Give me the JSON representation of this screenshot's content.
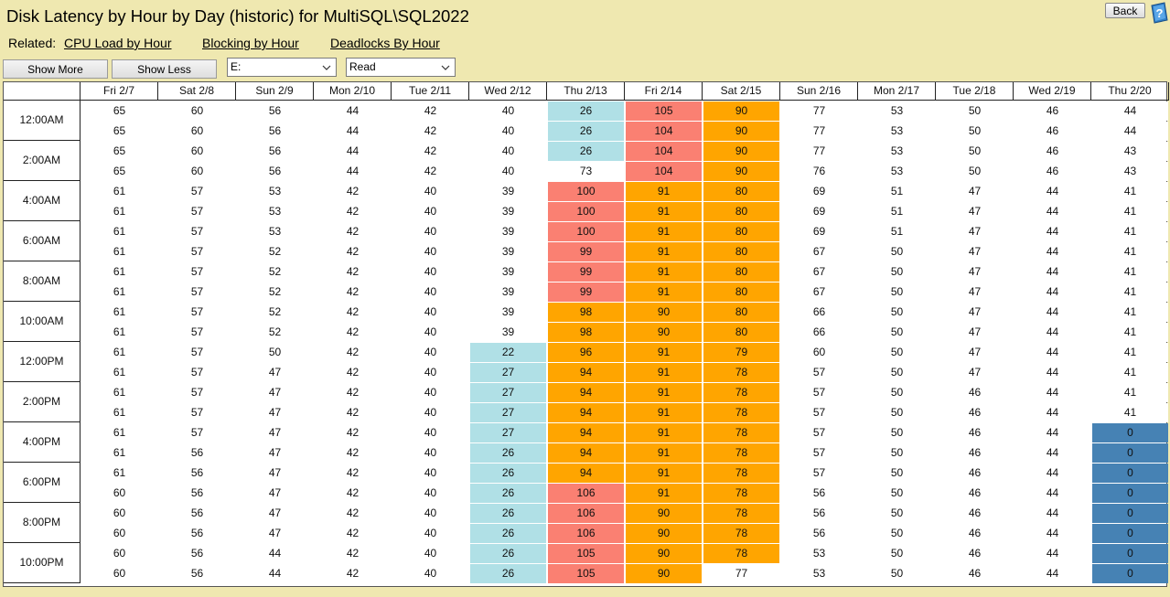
{
  "title": "Disk Latency by Hour by Day (historic) for MultiSQL\\SQL2022",
  "back_label": "Back",
  "related_label": "Related:",
  "links": [
    "CPU Load by Hour",
    "Blocking by Hour",
    "Deadlocks By Hour"
  ],
  "buttons": {
    "show_more": "Show More",
    "show_less": "Show Less"
  },
  "drive_select": {
    "value": "E:"
  },
  "metric_select": {
    "value": "Read"
  },
  "icons": {
    "help": "help-question-icon",
    "dropdown": "chevron-down-icon"
  },
  "colors": {
    "lightblue": "#b0e0e6",
    "salmon": "#fa8072",
    "orange": "#ffa500",
    "steelblue": "#4682b4",
    "white": "#ffffff"
  },
  "days": [
    "Fri 2/7",
    "Sat 2/8",
    "Sun 2/9",
    "Mon 2/10",
    "Tue 2/11",
    "Wed 2/12",
    "Thu 2/13",
    "Fri 2/14",
    "Sat 2/15",
    "Sun 2/16",
    "Mon 2/17",
    "Tue 2/18",
    "Wed 2/19",
    "Thu 2/20"
  ],
  "hours": [
    "12:00AM",
    "2:00AM",
    "4:00AM",
    "6:00AM",
    "8:00AM",
    "10:00AM",
    "12:00PM",
    "2:00PM",
    "4:00PM",
    "6:00PM",
    "8:00PM",
    "10:00PM"
  ],
  "rows": [
    [
      [
        "65",
        ""
      ],
      [
        "60",
        ""
      ],
      [
        "56",
        ""
      ],
      [
        "44",
        ""
      ],
      [
        "42",
        ""
      ],
      [
        "40",
        ""
      ],
      [
        "26",
        "b"
      ],
      [
        "105",
        "s"
      ],
      [
        "90",
        "o"
      ],
      [
        "77",
        ""
      ],
      [
        "53",
        ""
      ],
      [
        "50",
        ""
      ],
      [
        "46",
        ""
      ],
      [
        "44",
        ""
      ]
    ],
    [
      [
        "65",
        ""
      ],
      [
        "60",
        ""
      ],
      [
        "56",
        ""
      ],
      [
        "44",
        ""
      ],
      [
        "42",
        ""
      ],
      [
        "40",
        ""
      ],
      [
        "26",
        "b"
      ],
      [
        "104",
        "s"
      ],
      [
        "90",
        "o"
      ],
      [
        "77",
        ""
      ],
      [
        "53",
        ""
      ],
      [
        "50",
        ""
      ],
      [
        "46",
        ""
      ],
      [
        "44",
        ""
      ]
    ],
    [
      [
        "65",
        ""
      ],
      [
        "60",
        ""
      ],
      [
        "56",
        ""
      ],
      [
        "44",
        ""
      ],
      [
        "42",
        ""
      ],
      [
        "40",
        ""
      ],
      [
        "26",
        "b"
      ],
      [
        "104",
        "s"
      ],
      [
        "90",
        "o"
      ],
      [
        "77",
        ""
      ],
      [
        "53",
        ""
      ],
      [
        "50",
        ""
      ],
      [
        "46",
        ""
      ],
      [
        "43",
        ""
      ]
    ],
    [
      [
        "65",
        ""
      ],
      [
        "60",
        ""
      ],
      [
        "56",
        ""
      ],
      [
        "44",
        ""
      ],
      [
        "42",
        ""
      ],
      [
        "40",
        ""
      ],
      [
        "73",
        ""
      ],
      [
        "104",
        "s"
      ],
      [
        "90",
        "o"
      ],
      [
        "76",
        ""
      ],
      [
        "53",
        ""
      ],
      [
        "50",
        ""
      ],
      [
        "46",
        ""
      ],
      [
        "43",
        ""
      ]
    ],
    [
      [
        "61",
        ""
      ],
      [
        "57",
        ""
      ],
      [
        "53",
        ""
      ],
      [
        "42",
        ""
      ],
      [
        "40",
        ""
      ],
      [
        "39",
        ""
      ],
      [
        "100",
        "s"
      ],
      [
        "91",
        "o"
      ],
      [
        "80",
        "o"
      ],
      [
        "69",
        ""
      ],
      [
        "51",
        ""
      ],
      [
        "47",
        ""
      ],
      [
        "44",
        ""
      ],
      [
        "41",
        ""
      ]
    ],
    [
      [
        "61",
        ""
      ],
      [
        "57",
        ""
      ],
      [
        "53",
        ""
      ],
      [
        "42",
        ""
      ],
      [
        "40",
        ""
      ],
      [
        "39",
        ""
      ],
      [
        "100",
        "s"
      ],
      [
        "91",
        "o"
      ],
      [
        "80",
        "o"
      ],
      [
        "69",
        ""
      ],
      [
        "51",
        ""
      ],
      [
        "47",
        ""
      ],
      [
        "44",
        ""
      ],
      [
        "41",
        ""
      ]
    ],
    [
      [
        "61",
        ""
      ],
      [
        "57",
        ""
      ],
      [
        "53",
        ""
      ],
      [
        "42",
        ""
      ],
      [
        "40",
        ""
      ],
      [
        "39",
        ""
      ],
      [
        "100",
        "s"
      ],
      [
        "91",
        "o"
      ],
      [
        "80",
        "o"
      ],
      [
        "69",
        ""
      ],
      [
        "51",
        ""
      ],
      [
        "47",
        ""
      ],
      [
        "44",
        ""
      ],
      [
        "41",
        ""
      ]
    ],
    [
      [
        "61",
        ""
      ],
      [
        "57",
        ""
      ],
      [
        "52",
        ""
      ],
      [
        "42",
        ""
      ],
      [
        "40",
        ""
      ],
      [
        "39",
        ""
      ],
      [
        "99",
        "s"
      ],
      [
        "91",
        "o"
      ],
      [
        "80",
        "o"
      ],
      [
        "67",
        ""
      ],
      [
        "50",
        ""
      ],
      [
        "47",
        ""
      ],
      [
        "44",
        ""
      ],
      [
        "41",
        ""
      ]
    ],
    [
      [
        "61",
        ""
      ],
      [
        "57",
        ""
      ],
      [
        "52",
        ""
      ],
      [
        "42",
        ""
      ],
      [
        "40",
        ""
      ],
      [
        "39",
        ""
      ],
      [
        "99",
        "s"
      ],
      [
        "91",
        "o"
      ],
      [
        "80",
        "o"
      ],
      [
        "67",
        ""
      ],
      [
        "50",
        ""
      ],
      [
        "47",
        ""
      ],
      [
        "44",
        ""
      ],
      [
        "41",
        ""
      ]
    ],
    [
      [
        "61",
        ""
      ],
      [
        "57",
        ""
      ],
      [
        "52",
        ""
      ],
      [
        "42",
        ""
      ],
      [
        "40",
        ""
      ],
      [
        "39",
        ""
      ],
      [
        "99",
        "s"
      ],
      [
        "91",
        "o"
      ],
      [
        "80",
        "o"
      ],
      [
        "67",
        ""
      ],
      [
        "50",
        ""
      ],
      [
        "47",
        ""
      ],
      [
        "44",
        ""
      ],
      [
        "41",
        ""
      ]
    ],
    [
      [
        "61",
        ""
      ],
      [
        "57",
        ""
      ],
      [
        "52",
        ""
      ],
      [
        "42",
        ""
      ],
      [
        "40",
        ""
      ],
      [
        "39",
        ""
      ],
      [
        "98",
        "o"
      ],
      [
        "90",
        "o"
      ],
      [
        "80",
        "o"
      ],
      [
        "66",
        ""
      ],
      [
        "50",
        ""
      ],
      [
        "47",
        ""
      ],
      [
        "44",
        ""
      ],
      [
        "41",
        ""
      ]
    ],
    [
      [
        "61",
        ""
      ],
      [
        "57",
        ""
      ],
      [
        "52",
        ""
      ],
      [
        "42",
        ""
      ],
      [
        "40",
        ""
      ],
      [
        "39",
        ""
      ],
      [
        "98",
        "o"
      ],
      [
        "90",
        "o"
      ],
      [
        "80",
        "o"
      ],
      [
        "66",
        ""
      ],
      [
        "50",
        ""
      ],
      [
        "47",
        ""
      ],
      [
        "44",
        ""
      ],
      [
        "41",
        ""
      ]
    ],
    [
      [
        "61",
        ""
      ],
      [
        "57",
        ""
      ],
      [
        "50",
        ""
      ],
      [
        "42",
        ""
      ],
      [
        "40",
        ""
      ],
      [
        "22",
        "b"
      ],
      [
        "96",
        "o"
      ],
      [
        "91",
        "o"
      ],
      [
        "79",
        "o"
      ],
      [
        "60",
        ""
      ],
      [
        "50",
        ""
      ],
      [
        "47",
        ""
      ],
      [
        "44",
        ""
      ],
      [
        "41",
        ""
      ]
    ],
    [
      [
        "61",
        ""
      ],
      [
        "57",
        ""
      ],
      [
        "47",
        ""
      ],
      [
        "42",
        ""
      ],
      [
        "40",
        ""
      ],
      [
        "27",
        "b"
      ],
      [
        "94",
        "o"
      ],
      [
        "91",
        "o"
      ],
      [
        "78",
        "o"
      ],
      [
        "57",
        ""
      ],
      [
        "50",
        ""
      ],
      [
        "47",
        ""
      ],
      [
        "44",
        ""
      ],
      [
        "41",
        ""
      ]
    ],
    [
      [
        "61",
        ""
      ],
      [
        "57",
        ""
      ],
      [
        "47",
        ""
      ],
      [
        "42",
        ""
      ],
      [
        "40",
        ""
      ],
      [
        "27",
        "b"
      ],
      [
        "94",
        "o"
      ],
      [
        "91",
        "o"
      ],
      [
        "78",
        "o"
      ],
      [
        "57",
        ""
      ],
      [
        "50",
        ""
      ],
      [
        "46",
        ""
      ],
      [
        "44",
        ""
      ],
      [
        "41",
        ""
      ]
    ],
    [
      [
        "61",
        ""
      ],
      [
        "57",
        ""
      ],
      [
        "47",
        ""
      ],
      [
        "42",
        ""
      ],
      [
        "40",
        ""
      ],
      [
        "27",
        "b"
      ],
      [
        "94",
        "o"
      ],
      [
        "91",
        "o"
      ],
      [
        "78",
        "o"
      ],
      [
        "57",
        ""
      ],
      [
        "50",
        ""
      ],
      [
        "46",
        ""
      ],
      [
        "44",
        ""
      ],
      [
        "41",
        ""
      ]
    ],
    [
      [
        "61",
        ""
      ],
      [
        "57",
        ""
      ],
      [
        "47",
        ""
      ],
      [
        "42",
        ""
      ],
      [
        "40",
        ""
      ],
      [
        "27",
        "b"
      ],
      [
        "94",
        "o"
      ],
      [
        "91",
        "o"
      ],
      [
        "78",
        "o"
      ],
      [
        "57",
        ""
      ],
      [
        "50",
        ""
      ],
      [
        "46",
        ""
      ],
      [
        "44",
        ""
      ],
      [
        "0",
        "d"
      ]
    ],
    [
      [
        "61",
        ""
      ],
      [
        "56",
        ""
      ],
      [
        "47",
        ""
      ],
      [
        "42",
        ""
      ],
      [
        "40",
        ""
      ],
      [
        "26",
        "b"
      ],
      [
        "94",
        "o"
      ],
      [
        "91",
        "o"
      ],
      [
        "78",
        "o"
      ],
      [
        "57",
        ""
      ],
      [
        "50",
        ""
      ],
      [
        "46",
        ""
      ],
      [
        "44",
        ""
      ],
      [
        "0",
        "d"
      ]
    ],
    [
      [
        "61",
        ""
      ],
      [
        "56",
        ""
      ],
      [
        "47",
        ""
      ],
      [
        "42",
        ""
      ],
      [
        "40",
        ""
      ],
      [
        "26",
        "b"
      ],
      [
        "94",
        "o"
      ],
      [
        "91",
        "o"
      ],
      [
        "78",
        "o"
      ],
      [
        "57",
        ""
      ],
      [
        "50",
        ""
      ],
      [
        "46",
        ""
      ],
      [
        "44",
        ""
      ],
      [
        "0",
        "d"
      ]
    ],
    [
      [
        "60",
        ""
      ],
      [
        "56",
        ""
      ],
      [
        "47",
        ""
      ],
      [
        "42",
        ""
      ],
      [
        "40",
        ""
      ],
      [
        "26",
        "b"
      ],
      [
        "106",
        "s"
      ],
      [
        "91",
        "o"
      ],
      [
        "78",
        "o"
      ],
      [
        "56",
        ""
      ],
      [
        "50",
        ""
      ],
      [
        "46",
        ""
      ],
      [
        "44",
        ""
      ],
      [
        "0",
        "d"
      ]
    ],
    [
      [
        "60",
        ""
      ],
      [
        "56",
        ""
      ],
      [
        "47",
        ""
      ],
      [
        "42",
        ""
      ],
      [
        "40",
        ""
      ],
      [
        "26",
        "b"
      ],
      [
        "106",
        "s"
      ],
      [
        "90",
        "o"
      ],
      [
        "78",
        "o"
      ],
      [
        "56",
        ""
      ],
      [
        "50",
        ""
      ],
      [
        "46",
        ""
      ],
      [
        "44",
        ""
      ],
      [
        "0",
        "d"
      ]
    ],
    [
      [
        "60",
        ""
      ],
      [
        "56",
        ""
      ],
      [
        "47",
        ""
      ],
      [
        "42",
        ""
      ],
      [
        "40",
        ""
      ],
      [
        "26",
        "b"
      ],
      [
        "106",
        "s"
      ],
      [
        "90",
        "o"
      ],
      [
        "78",
        "o"
      ],
      [
        "56",
        ""
      ],
      [
        "50",
        ""
      ],
      [
        "46",
        ""
      ],
      [
        "44",
        ""
      ],
      [
        "0",
        "d"
      ]
    ],
    [
      [
        "60",
        ""
      ],
      [
        "56",
        ""
      ],
      [
        "44",
        ""
      ],
      [
        "42",
        ""
      ],
      [
        "40",
        ""
      ],
      [
        "26",
        "b"
      ],
      [
        "105",
        "s"
      ],
      [
        "90",
        "o"
      ],
      [
        "78",
        "o"
      ],
      [
        "53",
        ""
      ],
      [
        "50",
        ""
      ],
      [
        "46",
        ""
      ],
      [
        "44",
        ""
      ],
      [
        "0",
        "d"
      ]
    ],
    [
      [
        "60",
        ""
      ],
      [
        "56",
        ""
      ],
      [
        "44",
        ""
      ],
      [
        "42",
        ""
      ],
      [
        "40",
        ""
      ],
      [
        "26",
        "b"
      ],
      [
        "105",
        "s"
      ],
      [
        "90",
        "o"
      ],
      [
        "77",
        ""
      ],
      [
        "53",
        ""
      ],
      [
        "50",
        ""
      ],
      [
        "46",
        ""
      ],
      [
        "44",
        ""
      ],
      [
        "0",
        "d"
      ]
    ]
  ]
}
